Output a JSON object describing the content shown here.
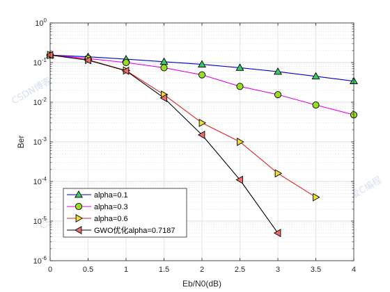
{
  "chart_data": {
    "type": "line",
    "title": "",
    "xlabel": "Eb/N0(dB)",
    "ylabel": "Ber",
    "xlim": [
      0,
      4
    ],
    "ylim": [
      1e-06,
      1
    ],
    "yscale": "log",
    "x_ticks": [
      0,
      0.5,
      1,
      1.5,
      2,
      2.5,
      3,
      3.5,
      4
    ],
    "x_tick_labels": [
      "0",
      "0.5",
      "1",
      "1.5",
      "2",
      "2.5",
      "3",
      "3.5",
      "4"
    ],
    "y_ticks": [
      1e-06,
      1e-05,
      0.0001,
      0.001,
      0.01,
      0.1,
      1
    ],
    "y_tick_labels": [
      {
        "base": "10",
        "exp": "-6"
      },
      {
        "base": "10",
        "exp": "-5"
      },
      {
        "base": "10",
        "exp": "-4"
      },
      {
        "base": "10",
        "exp": "-3"
      },
      {
        "base": "10",
        "exp": "-2"
      },
      {
        "base": "10",
        "exp": "-1"
      },
      {
        "base": "10",
        "exp": "0"
      }
    ],
    "grid": true,
    "minor_grid": true,
    "legend_position": "bottom-left",
    "series": [
      {
        "name": "alpha=0.1",
        "line_color": "#0000cc",
        "marker": "triangle-up",
        "marker_fill": "#33cc66",
        "x": [
          0,
          0.5,
          1,
          1.5,
          2,
          2.5,
          3,
          3.5,
          4
        ],
        "y": [
          0.155,
          0.14,
          0.122,
          0.105,
          0.09,
          0.074,
          0.059,
          0.045,
          0.034
        ]
      },
      {
        "name": "alpha=0.3",
        "line_color": "#e600e6",
        "marker": "circle",
        "marker_fill": "#99dd22",
        "x": [
          0,
          0.5,
          1,
          1.5,
          2,
          2.5,
          3,
          3.5,
          4
        ],
        "y": [
          0.155,
          0.127,
          0.1,
          0.074,
          0.049,
          0.025,
          0.0155,
          0.0085,
          0.0048
        ]
      },
      {
        "name": "alpha=0.6",
        "line_color": "#dd2222",
        "marker": "triangle-right",
        "marker_fill": "#eedd33",
        "x": [
          0,
          0.5,
          1,
          1.5,
          2,
          2.5,
          3,
          3.5
        ],
        "y": [
          0.155,
          0.117,
          0.063,
          0.0155,
          0.003,
          0.001,
          0.00016,
          4e-05
        ]
      },
      {
        "name": "GWO优化alpha=0.7187",
        "line_color": "#000000",
        "marker": "triangle-left",
        "marker_fill": "#f06a6a",
        "x": [
          0,
          0.5,
          1,
          1.5,
          2,
          2.5,
          3
        ],
        "y": [
          0.155,
          0.115,
          0.062,
          0.0128,
          0.0015,
          0.00011,
          5e-06
        ]
      }
    ]
  },
  "watermark": {
    "text": "CSDN博客：我爱C编程",
    "color": "#c9d4ea"
  }
}
